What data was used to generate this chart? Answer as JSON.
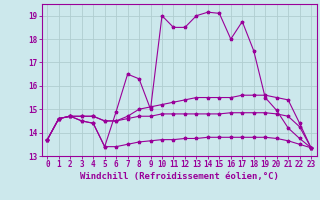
{
  "xlabel": "Windchill (Refroidissement éolien,°C)",
  "background_color": "#cce8ec",
  "line_color": "#990099",
  "grid_color": "#b0cdd0",
  "series": [
    {
      "x": [
        0,
        1,
        2,
        3,
        4,
        5,
        6,
        7,
        8,
        9,
        10,
        11,
        12,
        13,
        14,
        15,
        16,
        17,
        18,
        19,
        20,
        21,
        22,
        23
      ],
      "y": [
        13.7,
        14.6,
        14.7,
        14.5,
        14.4,
        13.4,
        14.9,
        16.5,
        16.3,
        15.0,
        19.0,
        18.5,
        18.5,
        19.0,
        19.15,
        19.1,
        18.0,
        18.75,
        17.5,
        15.5,
        14.95,
        14.2,
        13.75,
        13.35
      ]
    },
    {
      "x": [
        0,
        1,
        2,
        3,
        4,
        5,
        6,
        7,
        8,
        9,
        10,
        11,
        12,
        13,
        14,
        15,
        16,
        17,
        18,
        19,
        20,
        21,
        22,
        23
      ],
      "y": [
        13.7,
        14.6,
        14.7,
        14.7,
        14.7,
        14.5,
        14.5,
        14.7,
        15.0,
        15.1,
        15.2,
        15.3,
        15.4,
        15.5,
        15.5,
        15.5,
        15.5,
        15.6,
        15.6,
        15.6,
        15.5,
        15.4,
        14.4,
        13.35
      ]
    },
    {
      "x": [
        0,
        1,
        2,
        3,
        4,
        5,
        6,
        7,
        8,
        9,
        10,
        11,
        12,
        13,
        14,
        15,
        16,
        17,
        18,
        19,
        20,
        21,
        22,
        23
      ],
      "y": [
        13.7,
        14.6,
        14.7,
        14.7,
        14.7,
        14.5,
        14.5,
        14.6,
        14.7,
        14.7,
        14.8,
        14.8,
        14.8,
        14.8,
        14.8,
        14.8,
        14.85,
        14.85,
        14.85,
        14.85,
        14.8,
        14.7,
        14.25,
        13.35
      ]
    },
    {
      "x": [
        0,
        1,
        2,
        3,
        4,
        5,
        6,
        7,
        8,
        9,
        10,
        11,
        12,
        13,
        14,
        15,
        16,
        17,
        18,
        19,
        20,
        21,
        22,
        23
      ],
      "y": [
        13.7,
        14.6,
        14.7,
        14.5,
        14.4,
        13.4,
        13.4,
        13.5,
        13.6,
        13.65,
        13.7,
        13.7,
        13.75,
        13.75,
        13.8,
        13.8,
        13.8,
        13.8,
        13.8,
        13.8,
        13.75,
        13.65,
        13.5,
        13.35
      ]
    }
  ],
  "xlim": [
    -0.5,
    23.5
  ],
  "ylim": [
    13,
    19.5
  ],
  "yticks": [
    13,
    14,
    15,
    16,
    17,
    18,
    19
  ],
  "xticks": [
    0,
    1,
    2,
    3,
    4,
    5,
    6,
    7,
    8,
    9,
    10,
    11,
    12,
    13,
    14,
    15,
    16,
    17,
    18,
    19,
    20,
    21,
    22,
    23
  ],
  "tick_fontsize": 5.5,
  "xlabel_fontsize": 6.5
}
